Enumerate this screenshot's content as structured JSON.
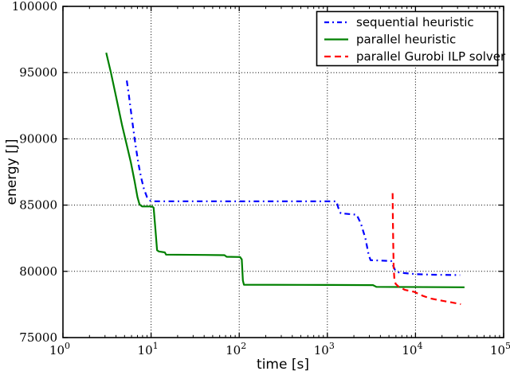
{
  "figure": {
    "xlabel": "time [s]",
    "ylabel": "energy [J]",
    "background": "#ffffff",
    "frame_color": "#000000",
    "grid_color": "#000000"
  },
  "chart_data": {
    "type": "line",
    "title": "",
    "xlabel": "time [s]",
    "ylabel": "energy [J]",
    "x_scale": "log",
    "xlim": [
      1,
      100000
    ],
    "ylim": [
      75000,
      100000
    ],
    "grid": true,
    "legend_position": "upper right",
    "x_ticks": [
      {
        "base": "10",
        "exp": "0",
        "value": 1
      },
      {
        "base": "10",
        "exp": "1",
        "value": 10
      },
      {
        "base": "10",
        "exp": "2",
        "value": 100
      },
      {
        "base": "10",
        "exp": "3",
        "value": 1000
      },
      {
        "base": "10",
        "exp": "4",
        "value": 10000
      },
      {
        "base": "10",
        "exp": "5",
        "value": 100000
      }
    ],
    "y_ticks": [
      {
        "label": "75000",
        "value": 75000
      },
      {
        "label": "80000",
        "value": 80000
      },
      {
        "label": "85000",
        "value": 85000
      },
      {
        "label": "90000",
        "value": 90000
      },
      {
        "label": "95000",
        "value": 95000
      },
      {
        "label": "100000",
        "value": 100000
      }
    ],
    "series": [
      {
        "name": "sequential heuristic",
        "color": "#0000ff",
        "style": "dashdot",
        "points": [
          [
            5.3,
            94400
          ],
          [
            5.6,
            93300
          ],
          [
            5.9,
            92100
          ],
          [
            6.3,
            90700
          ],
          [
            6.7,
            89400
          ],
          [
            7.2,
            88100
          ],
          [
            7.7,
            87100
          ],
          [
            8.3,
            86200
          ],
          [
            9.0,
            85600
          ],
          [
            9.8,
            85330
          ],
          [
            10.5,
            85290
          ],
          [
            1270,
            85280
          ],
          [
            1330,
            84800
          ],
          [
            1420,
            84380
          ],
          [
            2150,
            84270
          ],
          [
            2400,
            83600
          ],
          [
            2700,
            82500
          ],
          [
            2950,
            81200
          ],
          [
            3100,
            80840
          ],
          [
            5300,
            80780
          ],
          [
            5600,
            80400
          ],
          [
            5900,
            80050
          ],
          [
            6400,
            79930
          ],
          [
            7500,
            79870
          ],
          [
            10000,
            79790
          ],
          [
            15000,
            79750
          ],
          [
            32000,
            79720
          ]
        ]
      },
      {
        "name": "parallel heuristic",
        "color": "#008000",
        "style": "solid",
        "points": [
          [
            3.1,
            96500
          ],
          [
            3.5,
            95000
          ],
          [
            4.0,
            93200
          ],
          [
            4.7,
            91000
          ],
          [
            5.4,
            89300
          ],
          [
            5.9,
            88200
          ],
          [
            6.5,
            86800
          ],
          [
            7.0,
            85600
          ],
          [
            7.4,
            85050
          ],
          [
            7.9,
            84900
          ],
          [
            10.3,
            84900
          ],
          [
            10.7,
            84800
          ],
          [
            11.2,
            83200
          ],
          [
            11.7,
            81600
          ],
          [
            12.2,
            81500
          ],
          [
            14.3,
            81430
          ],
          [
            14.8,
            81260
          ],
          [
            40,
            81240
          ],
          [
            68,
            81220
          ],
          [
            72,
            81100
          ],
          [
            102,
            81080
          ],
          [
            107,
            80900
          ],
          [
            110,
            79300
          ],
          [
            113,
            78990
          ],
          [
            1000,
            78975
          ],
          [
            3300,
            78960
          ],
          [
            3600,
            78830
          ],
          [
            36000,
            78800
          ]
        ]
      },
      {
        "name": "parallel Gurobi ILP solver",
        "color": "#ff0000",
        "style": "dashed",
        "points": [
          [
            5500,
            85900
          ],
          [
            5540,
            84000
          ],
          [
            5590,
            82000
          ],
          [
            5650,
            80300
          ],
          [
            5750,
            79500
          ],
          [
            5950,
            79050
          ],
          [
            6500,
            78820
          ],
          [
            7600,
            78600
          ],
          [
            9700,
            78450
          ],
          [
            12000,
            78160
          ],
          [
            14800,
            77950
          ],
          [
            20000,
            77780
          ],
          [
            26000,
            77650
          ],
          [
            32700,
            77520
          ]
        ]
      }
    ]
  }
}
